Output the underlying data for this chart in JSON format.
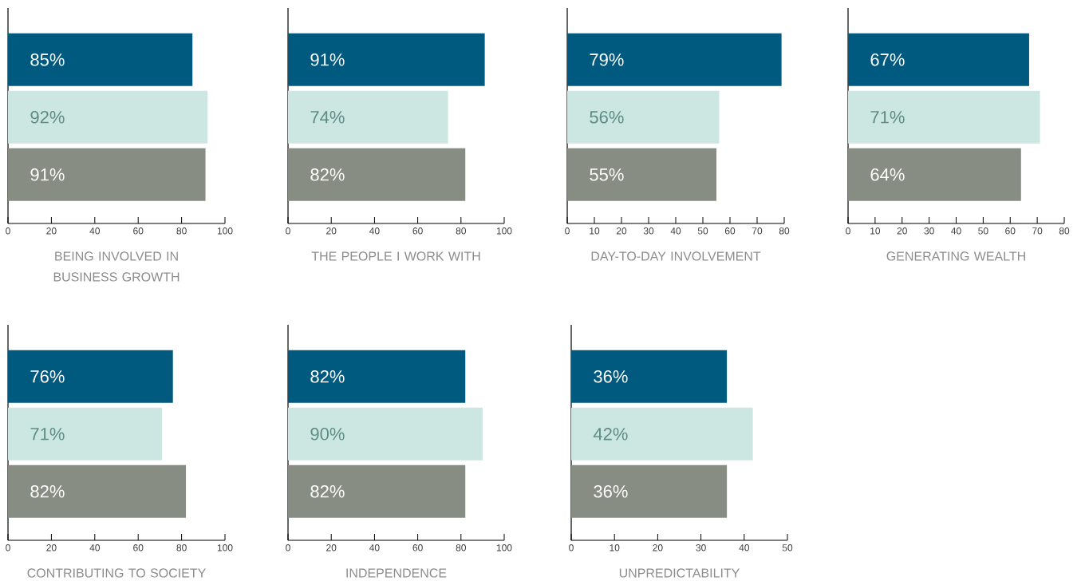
{
  "chart_data": [
    {
      "type": "bar",
      "orientation": "horizontal",
      "categories": [
        null,
        null,
        null
      ],
      "values": [
        85,
        92,
        91
      ],
      "value_labels": [
        "85%",
        "92%",
        "91%"
      ],
      "colors": [
        "#005a80",
        "#cce6e1",
        "#878d82"
      ],
      "xlim": [
        0,
        100
      ],
      "xticks": [
        0,
        20,
        40,
        60,
        80,
        100
      ],
      "xlabel": "BEING INVOLVED IN BUSINESS GROWTH",
      "tick_labels": "x"
    },
    {
      "type": "bar",
      "orientation": "horizontal",
      "categories": [
        null,
        null,
        null
      ],
      "values": [
        91,
        74,
        82
      ],
      "value_labels": [
        "91%",
        "74%",
        "82%"
      ],
      "colors": [
        "#005a80",
        "#cce6e1",
        "#878d82"
      ],
      "xlim": [
        0,
        100
      ],
      "xticks": [
        0,
        20,
        40,
        60,
        80,
        100
      ],
      "xlabel": "THE PEOPLE I WORK WITH",
      "tick_labels": "x"
    },
    {
      "type": "bar",
      "orientation": "horizontal",
      "categories": [
        null,
        null,
        null
      ],
      "values": [
        79,
        56,
        55
      ],
      "value_labels": [
        "79%",
        "56%",
        "55%"
      ],
      "colors": [
        "#005a80",
        "#cce6e1",
        "#878d82"
      ],
      "xlim": [
        0,
        80
      ],
      "xticks": [
        0,
        10,
        20,
        30,
        40,
        50,
        60,
        70,
        80
      ],
      "xlabel": "DAY-TO-DAY INVOLVEMENT",
      "tick_labels": "x"
    },
    {
      "type": "bar",
      "orientation": "horizontal",
      "categories": [
        null,
        null,
        null
      ],
      "values": [
        67,
        71,
        64
      ],
      "value_labels": [
        "67%",
        "71%",
        "64%"
      ],
      "colors": [
        "#005a80",
        "#cce6e1",
        "#878d82"
      ],
      "xlim": [
        0,
        80
      ],
      "xticks": [
        0,
        10,
        20,
        30,
        40,
        50,
        60,
        70,
        80
      ],
      "xlabel": "GENERATING WEALTH",
      "tick_labels": "x"
    },
    {
      "type": "bar",
      "orientation": "horizontal",
      "categories": [
        null,
        null,
        null
      ],
      "values": [
        76,
        71,
        82
      ],
      "value_labels": [
        "76%",
        "71%",
        "82%"
      ],
      "colors": [
        "#005a80",
        "#cce6e1",
        "#878d82"
      ],
      "xlim": [
        0,
        100
      ],
      "xticks": [
        0,
        20,
        40,
        60,
        80,
        100
      ],
      "xlabel": "CONTRIBUTING TO SOCIETY",
      "tick_labels": "x"
    },
    {
      "type": "bar",
      "orientation": "horizontal",
      "categories": [
        null,
        null,
        null
      ],
      "values": [
        82,
        90,
        82
      ],
      "value_labels": [
        "82%",
        "90%",
        "82%"
      ],
      "colors": [
        "#005a80",
        "#cce6e1",
        "#878d82"
      ],
      "xlim": [
        0,
        100
      ],
      "xticks": [
        0,
        20,
        40,
        60,
        80,
        100
      ],
      "xlabel": "INDEPENDENCE",
      "tick_labels": "x"
    },
    {
      "type": "bar",
      "orientation": "horizontal",
      "categories": [
        null,
        null,
        null
      ],
      "values": [
        36,
        42,
        36
      ],
      "value_labels": [
        "36%",
        "42%",
        "36%"
      ],
      "colors": [
        "#005a80",
        "#cce6e1",
        "#878d82"
      ],
      "xlim": [
        0,
        50
      ],
      "xticks": [
        0,
        10,
        20,
        30,
        40,
        50
      ],
      "xlabel": "UNPREDICTABILITY",
      "tick_labels": "x"
    }
  ]
}
